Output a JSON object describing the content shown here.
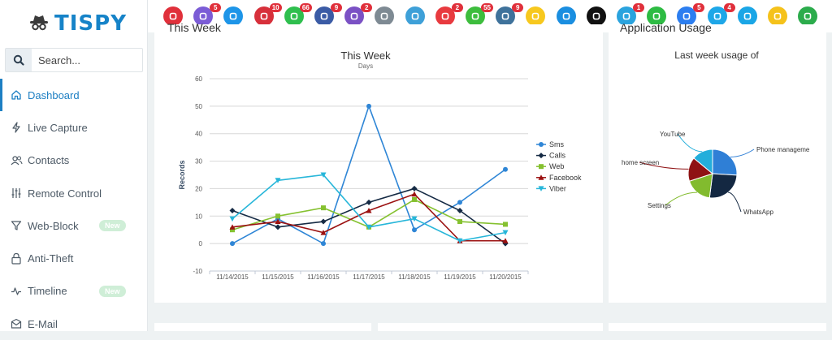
{
  "brand": {
    "name": "TISPY"
  },
  "search": {
    "placeholder": "Search..."
  },
  "nav": [
    {
      "label": "Dashboard",
      "icon": "home-icon",
      "active": true,
      "badge": ""
    },
    {
      "label": "Live Capture",
      "icon": "bolt-icon",
      "active": false,
      "badge": ""
    },
    {
      "label": "Contacts",
      "icon": "users-icon",
      "active": false,
      "badge": ""
    },
    {
      "label": "Remote Control",
      "icon": "sliders-icon",
      "active": false,
      "badge": ""
    },
    {
      "label": "Web-Block",
      "icon": "filter-icon",
      "active": false,
      "badge": "New"
    },
    {
      "label": "Anti-Theft",
      "icon": "lock-icon",
      "active": false,
      "badge": ""
    },
    {
      "label": "Timeline",
      "icon": "activity-icon",
      "active": false,
      "badge": "New"
    },
    {
      "label": "E-Mail",
      "icon": "mail-icon",
      "active": false,
      "badge": ""
    }
  ],
  "apps": [
    {
      "name": "video-record-icon",
      "color": "#e0303b",
      "badge": ""
    },
    {
      "name": "call-recordings-icon",
      "color": "#7b5cd6",
      "badge": "5"
    },
    {
      "name": "email-icon",
      "color": "#1d95e8",
      "badge": ""
    },
    {
      "name": "photos-icon",
      "color": "#d7303b",
      "badge": "10"
    },
    {
      "name": "whatsapp-icon",
      "color": "#2fbf4e",
      "badge": "66"
    },
    {
      "name": "facebook-icon",
      "color": "#3b5ba5",
      "badge": "9"
    },
    {
      "name": "viber-icon",
      "color": "#7b51c4",
      "badge": "2"
    },
    {
      "name": "clipboard-icon",
      "color": "#7e8a93",
      "badge": ""
    },
    {
      "name": "screen-icon",
      "color": "#3ea0d8",
      "badge": ""
    },
    {
      "name": "tinder-icon",
      "color": "#e83a3f",
      "badge": "2"
    },
    {
      "name": "wechat-icon",
      "color": "#3dbd3d",
      "badge": "55"
    },
    {
      "name": "instagram-icon",
      "color": "#3f729b",
      "badge": "9"
    },
    {
      "name": "snapchat-icon",
      "color": "#f7c81e",
      "badge": ""
    },
    {
      "name": "flickr-icon",
      "color": "#1a8ee0",
      "badge": ""
    },
    {
      "name": "tiktok-icon",
      "color": "#111111",
      "badge": ""
    },
    {
      "name": "telegram-icon",
      "color": "#2aa3de",
      "badge": "1"
    },
    {
      "name": "line-icon",
      "color": "#2dbb43",
      "badge": ""
    },
    {
      "name": "messenger-icon",
      "color": "#2c7ef0",
      "badge": "5"
    },
    {
      "name": "skype-icon",
      "color": "#1ea7e8",
      "badge": "4"
    },
    {
      "name": "bip-icon",
      "color": "#1aa6e6",
      "badge": ""
    },
    {
      "name": "kakaotalk-icon",
      "color": "#f5c21b",
      "badge": ""
    },
    {
      "name": "hangouts-icon",
      "color": "#2cac4c",
      "badge": ""
    }
  ],
  "cards": {
    "week_title": "This Week",
    "usage_title": "Application Usage"
  },
  "chart_data": [
    {
      "type": "line",
      "title": "This Week",
      "subtitle": "Days",
      "ylabel": "Records",
      "xlabel": "",
      "ylim": [
        -10,
        60
      ],
      "yticks": [
        -10,
        0,
        10,
        20,
        30,
        40,
        50,
        60
      ],
      "categories": [
        "11/14/2015",
        "11/15/2015",
        "11/16/2015",
        "11/17/2015",
        "11/18/2015",
        "11/19/2015",
        "11/20/2015"
      ],
      "legend": "right",
      "series": [
        {
          "name": "Sms",
          "color": "#2f86d6",
          "marker": "circle",
          "values": [
            0,
            9,
            0,
            50,
            5,
            15,
            27
          ]
        },
        {
          "name": "Calls",
          "color": "#152a44",
          "marker": "diamond",
          "values": [
            12,
            6,
            8,
            15,
            20,
            12,
            0
          ]
        },
        {
          "name": "Web",
          "color": "#85c130",
          "marker": "square",
          "values": [
            5,
            10,
            13,
            6,
            16,
            8,
            7
          ]
        },
        {
          "name": "Facebook",
          "color": "#9b1111",
          "marker": "triangle",
          "values": [
            6,
            8,
            4,
            12,
            18,
            1,
            1
          ]
        },
        {
          "name": "Viber",
          "color": "#27b6d9",
          "marker": "triangle-down",
          "values": [
            9,
            23,
            25,
            6,
            9,
            1,
            4
          ]
        }
      ]
    },
    {
      "type": "pie",
      "title": "Last week usage of",
      "slices": [
        {
          "name": "Phone manageme",
          "value": 26,
          "color": "#2f7fd6"
        },
        {
          "name": "WhatsApp",
          "value": 26,
          "color": "#142842"
        },
        {
          "name": "Settings",
          "value": 18,
          "color": "#82bb2e"
        },
        {
          "name": "home screen",
          "value": 16,
          "color": "#8f1214"
        },
        {
          "name": "YouTube",
          "value": 14,
          "color": "#23aedb"
        }
      ]
    }
  ]
}
